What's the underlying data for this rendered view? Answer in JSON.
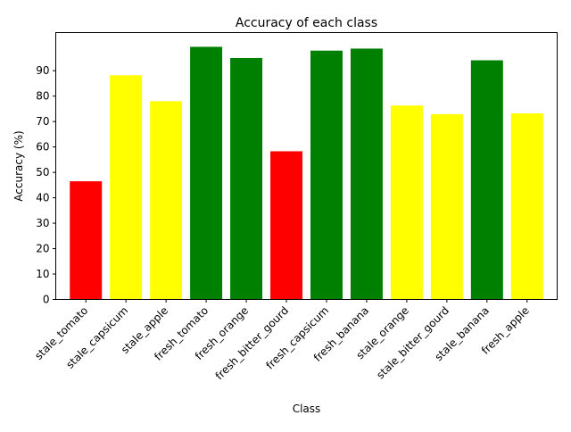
{
  "chart_data": {
    "type": "bar",
    "title": "Accuracy of each class",
    "xlabel": "Class",
    "ylabel": "Accuracy (%)",
    "ylim": [
      0,
      105
    ],
    "yticks": [
      0,
      10,
      20,
      30,
      40,
      50,
      60,
      70,
      80,
      90
    ],
    "grid": false,
    "categories": [
      "stale_tomato",
      "stale_capsicum",
      "stale_apple",
      "fresh_tomato",
      "fresh_orange",
      "fresh_bitter_gourd",
      "fresh_capsicum",
      "fresh_banana",
      "stale_orange",
      "stale_bitter_gourd",
      "stale_banana",
      "fresh_apple"
    ],
    "values": [
      46.5,
      88.2,
      78,
      99.4,
      95,
      58.3,
      97.9,
      98.7,
      76.3,
      72.9,
      94.1,
      73.2
    ],
    "colors": [
      "#ff0000",
      "#ffff00",
      "#ffff00",
      "#008000",
      "#008000",
      "#ff0000",
      "#008000",
      "#008000",
      "#ffff00",
      "#ffff00",
      "#008000",
      "#ffff00"
    ]
  }
}
